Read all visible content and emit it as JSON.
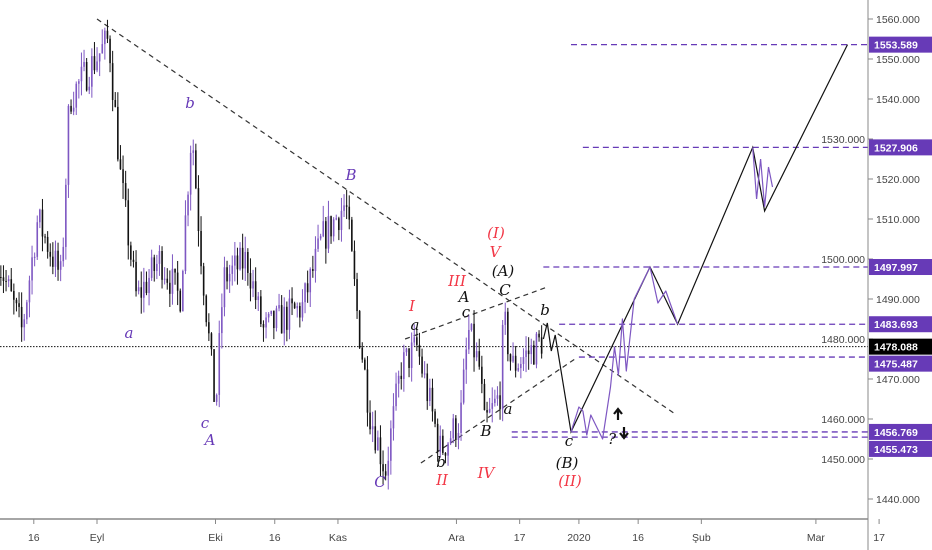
{
  "chart_data": {
    "type": "candlestick",
    "x_ticks": [
      "16",
      "Eyl",
      "Eki",
      "16",
      "Kas",
      "Ara",
      "17",
      "2020",
      "16",
      "Şub",
      "Mar",
      "17"
    ],
    "x_tick_dates": [
      "2019-08-16",
      "2019-09-01",
      "2019-10-01",
      "2019-10-16",
      "2019-11-01",
      "2019-12-01",
      "2019-12-17",
      "2020-01-01",
      "2020-01-16",
      "2020-02-01",
      "2020-03-01",
      "2020-03-17"
    ],
    "y_ticks": [
      "1560.000",
      "1550.000",
      "1540.000",
      "1530.000",
      "1520.000",
      "1510.000",
      "1500.000",
      "1490.000",
      "1480.000",
      "1470.000",
      "1460.000",
      "1450.000",
      "1440.000"
    ],
    "ylim": [
      1434,
      1564
    ],
    "grid": false,
    "price_path": [
      [
        "2019-08-07",
        1500
      ],
      [
        "2019-08-13",
        1482
      ],
      [
        "2019-08-17",
        1510
      ],
      [
        "2019-08-23",
        1495
      ],
      [
        "2019-08-25",
        1540
      ],
      [
        "2019-09-04",
        1555
      ],
      [
        "2019-09-07",
        1520
      ],
      [
        "2019-09-11",
        1490
      ],
      [
        "2019-09-17",
        1500
      ],
      [
        "2019-09-22",
        1490
      ],
      [
        "2019-09-25",
        1533
      ],
      [
        "2019-09-27",
        1505
      ],
      [
        "2019-10-01",
        1462
      ],
      [
        "2019-10-03",
        1495
      ],
      [
        "2019-10-09",
        1500
      ],
      [
        "2019-10-13",
        1482
      ],
      [
        "2019-10-23",
        1488
      ],
      [
        "2019-10-28",
        1505
      ],
      [
        "2019-11-03",
        1514
      ],
      [
        "2019-11-06",
        1485
      ],
      [
        "2019-11-09",
        1462
      ],
      [
        "2019-11-13",
        1447
      ],
      [
        "2019-11-17",
        1473
      ],
      [
        "2019-11-21",
        1478
      ],
      [
        "2019-11-27",
        1452
      ],
      [
        "2019-12-02",
        1460
      ],
      [
        "2019-12-04",
        1482
      ],
      [
        "2019-12-07",
        1472
      ],
      [
        "2019-12-08",
        1458
      ],
      [
        "2019-12-12",
        1466
      ],
      [
        "2019-12-13",
        1485
      ],
      [
        "2019-12-15",
        1473
      ],
      [
        "2019-12-21",
        1478
      ],
      [
        "2019-12-23",
        1480
      ]
    ],
    "projection_main": [
      [
        "2019-12-23",
        1480
      ],
      [
        "2019-12-24",
        1484
      ],
      [
        "2019-12-25",
        1477
      ],
      [
        "2019-12-26",
        1481
      ],
      [
        "2019-12-30",
        1456.769
      ],
      [
        "2020-01-19",
        1497.997
      ],
      [
        "2020-01-26",
        1483.693
      ],
      [
        "2020-02-14",
        1527.906
      ],
      [
        "2020-02-17",
        1512
      ],
      [
        "2020-03-09",
        1553.589
      ]
    ],
    "projection_alt": [
      [
        "2019-12-30",
        1456.769
      ],
      [
        "2020-01-01",
        1463
      ],
      [
        "2020-01-02",
        1462
      ],
      [
        "2020-01-03",
        1456
      ],
      [
        "2020-01-04",
        1461
      ],
      [
        "2020-01-05",
        1459
      ],
      [
        "2020-01-07",
        1455
      ],
      [
        "2020-01-09",
        1468
      ],
      [
        "2020-01-10",
        1478
      ],
      [
        "2020-01-11",
        1471
      ],
      [
        "2020-01-12",
        1485
      ],
      [
        "2020-01-13",
        1472
      ],
      [
        "2020-01-15",
        1490
      ],
      [
        "2020-01-19",
        1497.997
      ],
      [
        "2020-01-21",
        1489
      ],
      [
        "2020-01-23",
        1492
      ],
      [
        "2020-01-26",
        1483.693
      ],
      [
        "2020-02-14",
        1527.906
      ],
      [
        "2020-02-15",
        1515
      ],
      [
        "2020-02-16",
        1525
      ],
      [
        "2020-02-17",
        1513
      ],
      [
        "2020-02-18",
        1523
      ],
      [
        "2020-02-19",
        1518
      ]
    ],
    "trendlines": [
      [
        [
          "2019-09-01",
          1560
        ],
        [
          "2020-01-25",
          1461.5
        ]
      ],
      [
        [
          "2019-11-18",
          1480
        ],
        [
          "2019-12-24",
          1493
        ]
      ],
      [
        [
          "2019-11-22",
          1449
        ],
        [
          "2019-12-31",
          1475
        ]
      ]
    ],
    "levels": [
      {
        "label": "1553.589",
        "value": 1553.589,
        "from": "2019-12-30"
      },
      {
        "label": "1527.906",
        "value": 1527.906,
        "from": "2020-01-02"
      },
      {
        "label": "1497.997",
        "value": 1497.997,
        "from": "2019-12-23"
      },
      {
        "label": "1483.693",
        "value": 1483.693,
        "from": "2019-12-27"
      },
      {
        "label": "1475.487",
        "value": 1475.487,
        "from": "2020-01-01"
      },
      {
        "label": "1456.769",
        "value": 1456.769,
        "from": "2019-12-15"
      },
      {
        "label": "1455.473",
        "value": 1455.473,
        "from": "2019-12-15"
      }
    ],
    "last_price": {
      "label": "1478.088",
      "value": 1478.088
    },
    "colors": {
      "level": "#673ab7",
      "wave_purple": "#673ab7",
      "wave_red": "#f23645",
      "wave_black": "#111111",
      "candle_up": "#7e57c2",
      "candle_down": "#111111"
    }
  },
  "wave_labels": {
    "purple": [
      "b",
      "a",
      "c",
      "A",
      "B",
      "C"
    ],
    "red": [
      "I",
      "III",
      "(I)",
      "V",
      "II",
      "IV",
      "(II)"
    ],
    "black": [
      "a",
      "A",
      "c",
      "(A)",
      "C",
      "b",
      "b",
      "B",
      "a",
      "c",
      "(B)",
      "?"
    ]
  },
  "icons": [
    "arrow-up-icon",
    "arrow-down-icon"
  ]
}
